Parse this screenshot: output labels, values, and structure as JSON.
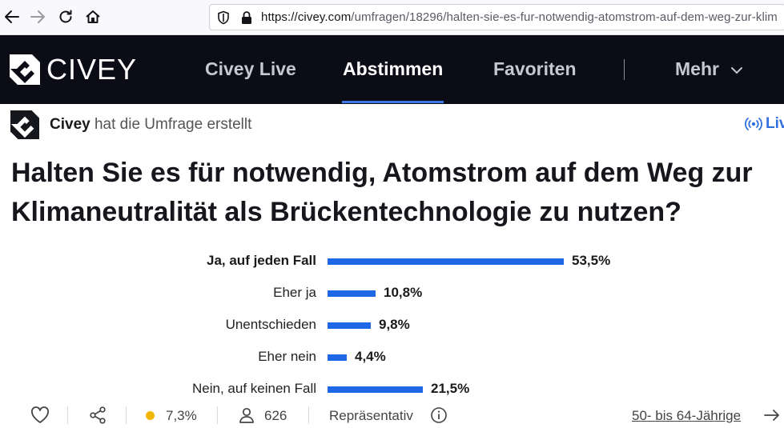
{
  "browser": {
    "url_host": "https://civey.com",
    "url_path": "/umfragen/18296/halten-sie-es-fur-notwendig-atomstrom-auf-dem-weg-zur-klim"
  },
  "header": {
    "logo_text": "CIVEY",
    "nav": [
      "Civey Live",
      "Abstimmen",
      "Favoriten",
      "Mehr"
    ],
    "active_nav": "Abstimmen"
  },
  "creator": {
    "name": "Civey",
    "action": "hat die Umfrage erstellt",
    "live_label": "Liv"
  },
  "question": "Halten Sie es für notwendig, Atomstrom auf dem Weg zur Klimaneutralität als Brückentechnologie zu nutzen?",
  "chart_data": {
    "type": "bar",
    "orientation": "horizontal",
    "categories": [
      "Ja, auf jeden Fall",
      "Eher ja",
      "Unentschieden",
      "Eher nein",
      "Nein, auf keinen Fall"
    ],
    "values": [
      53.5,
      10.8,
      9.8,
      4.4,
      21.5
    ],
    "value_labels": [
      "53,5%",
      "10,8%",
      "9,8%",
      "4,4%",
      "21,5%"
    ],
    "bar_color": "#1d68e6"
  },
  "footer": {
    "error_margin": "7,3%",
    "participants": "626",
    "representative_label": "Repräsentativ",
    "segment_link": "50- bis 64-Jährige"
  },
  "colors": {
    "header_bg": "#0c0c17",
    "accent": "#1d68e6",
    "margin_dot": "#f2b600"
  }
}
